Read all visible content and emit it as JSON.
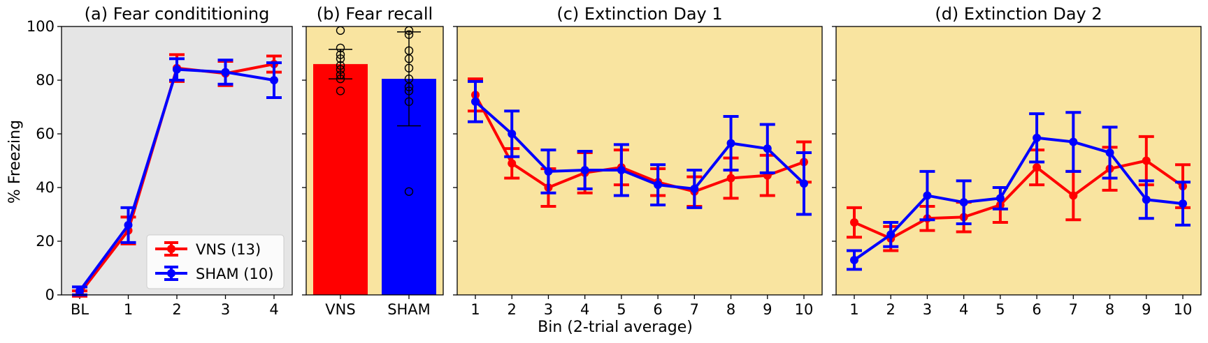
{
  "figure": {
    "ylabel": "% Freezing",
    "xlabel": "Bin (2-trial average)"
  },
  "colors": {
    "vns": "#ff0000",
    "sham": "#0000ff",
    "panel_a_bg": "#e5e5e5",
    "panel_bcd_bg": "#f9e4a0"
  },
  "chart_data": [
    {
      "type": "line",
      "title": "(a) Fear condititioning",
      "categories": [
        "BL",
        "1",
        "2",
        "3",
        "4"
      ],
      "ylim": [
        0,
        100
      ],
      "yticks": [
        0,
        20,
        40,
        60,
        80,
        100
      ],
      "legend": {
        "placement": "lower-right",
        "entries": [
          "VNS (13)",
          "SHAM (10)"
        ]
      },
      "series": [
        {
          "name": "VNS (13)",
          "values": [
            0.5,
            24,
            84.5,
            82.5,
            86
          ],
          "errors": [
            1,
            5,
            5,
            4.5,
            3
          ]
        },
        {
          "name": "SHAM (10)",
          "values": [
            1.5,
            26,
            84,
            83,
            80
          ],
          "errors": [
            1.5,
            6.5,
            4,
            4.5,
            6.5
          ]
        }
      ]
    },
    {
      "type": "bar",
      "title": "(b) Fear recall",
      "categories": [
        "VNS",
        "SHAM"
      ],
      "ylim": [
        0,
        100
      ],
      "values": [
        86,
        80.5
      ],
      "errors": [
        5.5,
        17.5
      ],
      "points": [
        [
          98.5,
          92,
          89.5,
          88,
          85.5,
          84,
          82,
          80.5,
          76
        ],
        [
          98.5,
          97,
          91,
          88,
          84.5,
          80.5,
          77.5,
          76,
          72,
          38.5
        ]
      ]
    },
    {
      "type": "line",
      "title": "(c) Extinction Day 1",
      "categories": [
        "1",
        "2",
        "3",
        "4",
        "5",
        "6",
        "7",
        "8",
        "9",
        "10"
      ],
      "ylim": [
        0,
        100
      ],
      "series": [
        {
          "name": "VNS (13)",
          "values": [
            74.5,
            49,
            40,
            45.5,
            47.5,
            42,
            38.5,
            43.5,
            44.5,
            49.5
          ],
          "errors": [
            6,
            5.5,
            7,
            7.5,
            6.5,
            5,
            5.5,
            7.5,
            7.5,
            7.5
          ]
        },
        {
          "name": "SHAM (10)",
          "values": [
            72,
            60,
            46,
            46.5,
            46.5,
            41,
            39.5,
            56.5,
            54.5,
            41.5
          ],
          "errors": [
            7.5,
            8.5,
            8,
            7,
            9.5,
            7.5,
            7,
            10,
            9,
            11.5
          ]
        }
      ]
    },
    {
      "type": "line",
      "title": "(d) Extinction Day 2",
      "categories": [
        "1",
        "2",
        "3",
        "4",
        "5",
        "6",
        "7",
        "8",
        "9",
        "10"
      ],
      "ylim": [
        0,
        100
      ],
      "series": [
        {
          "name": "VNS (13)",
          "values": [
            27,
            21,
            28.5,
            29,
            33.5,
            47.5,
            37,
            47,
            50,
            40.5
          ],
          "errors": [
            5.5,
            4.5,
            4.5,
            5.5,
            6.5,
            6.5,
            9,
            8,
            9,
            8
          ]
        },
        {
          "name": "SHAM (10)",
          "values": [
            13,
            22.5,
            37,
            34.5,
            36,
            58.5,
            57,
            53,
            35.5,
            34
          ],
          "errors": [
            3.5,
            4.5,
            9,
            8,
            4,
            9,
            11,
            9.5,
            7,
            8
          ]
        }
      ]
    }
  ]
}
